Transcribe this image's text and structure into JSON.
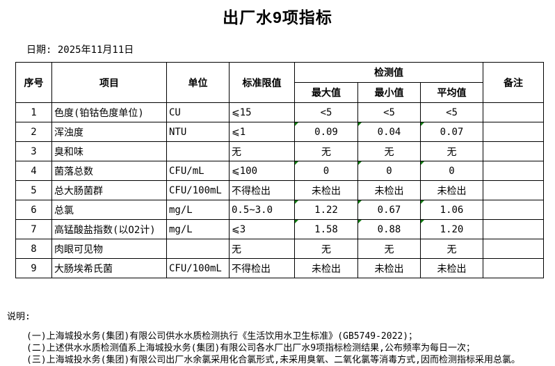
{
  "page": {
    "title": "出厂水9项指标",
    "date_label": "日期: 2025年11月11日"
  },
  "table": {
    "headers": {
      "no": "序号",
      "item": "项目",
      "unit": "单位",
      "limit": "标准限值",
      "detection": "检测值",
      "max": "最大值",
      "min": "最小值",
      "avg": "平均值",
      "note": "备注"
    },
    "rows": [
      {
        "no": "1",
        "item": "色度(铂钴色度单位)",
        "unit": "CU",
        "limit": "⩽15",
        "max": "<5",
        "min": "<5",
        "avg": "<5",
        "note": "",
        "flagged": false
      },
      {
        "no": "2",
        "item": "浑浊度",
        "unit": "NTU",
        "limit": "⩽1",
        "max": "0.09",
        "min": "0.04",
        "avg": "0.07",
        "note": "",
        "flagged": true
      },
      {
        "no": "3",
        "item": "臭和味",
        "unit": "",
        "limit": "无",
        "max": "无",
        "min": "无",
        "avg": "无",
        "note": "",
        "flagged": false
      },
      {
        "no": "4",
        "item": "菌落总数",
        "unit": "CFU/mL",
        "limit": "⩽100",
        "max": "0",
        "min": "0",
        "avg": "0",
        "note": "",
        "flagged": true
      },
      {
        "no": "5",
        "item": "总大肠菌群",
        "unit": "CFU/100mL",
        "limit": "不得检出",
        "max": "未检出",
        "min": "未检出",
        "avg": "未检出",
        "note": "",
        "flagged": false
      },
      {
        "no": "6",
        "item": "总氯",
        "unit": "mg/L",
        "limit": "0.5~3.0",
        "max": "1.22",
        "min": "0.67",
        "avg": "1.06",
        "note": "",
        "flagged": true
      },
      {
        "no": "7",
        "item": "高锰酸盐指数(以O2计)",
        "unit": "mg/L",
        "limit": "⩽3",
        "max": "1.58",
        "min": "0.88",
        "avg": "1.20",
        "note": "",
        "flagged": true
      },
      {
        "no": "8",
        "item": "肉眼可见物",
        "unit": "",
        "limit": "无",
        "max": "无",
        "min": "无",
        "avg": "无",
        "note": "",
        "flagged": false
      },
      {
        "no": "9",
        "item": "大肠埃希氏菌",
        "unit": "CFU/100mL",
        "limit": "不得检出",
        "max": "未检出",
        "min": "未检出",
        "avg": "未检出",
        "note": "",
        "flagged": false
      }
    ]
  },
  "notes": {
    "label": "说明:",
    "items": [
      "(一)上海城投水务(集团)有限公司供水水质检测执行《生活饮用水卫生标准》(GB5749-2022)；",
      "(二)上述供水水质检测值系上海城投水务(集团)有限公司各水厂出厂水9项指标检测结果,公布频率为每日一次；",
      "(三)上海城投水务(集团)有限公司出厂水余氯采用化合氯形式,未采用臭氧、二氧化氯等消毒方式,因而检测指标采用总氯。"
    ]
  },
  "colors": {
    "background": "#ffffff",
    "text": "#000000",
    "border": "#000000",
    "flag_triangle": "#107c10"
  }
}
